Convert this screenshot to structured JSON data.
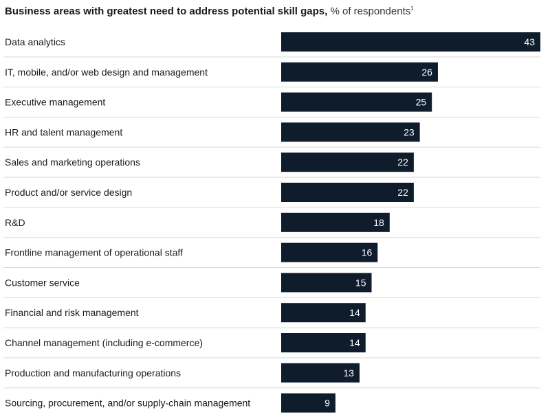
{
  "chart_data": {
    "type": "bar",
    "orientation": "horizontal",
    "title": "Business areas with greatest need to address potential skill gaps,",
    "subtitle": "% of respondents",
    "title_footnote": "1",
    "categories": [
      "Data analytics",
      "IT, mobile, and/or web design and management",
      "Executive management",
      "HR and talent management",
      "Sales and marketing operations",
      "Product and/or service design",
      "R&D",
      "Frontline management of operational staff",
      "Customer service",
      "Financial and risk management",
      "Channel management (including e-commerce)",
      "Production and manufacturing operations",
      "Sourcing, procurement, and/or supply-chain management"
    ],
    "values": [
      43,
      26,
      25,
      23,
      22,
      22,
      18,
      16,
      15,
      14,
      14,
      13,
      9
    ],
    "xlim": [
      0,
      43
    ],
    "grid": false,
    "data_labels": true,
    "bar_color": "#0e1c2c",
    "separator_color": "#d9d9d9"
  }
}
